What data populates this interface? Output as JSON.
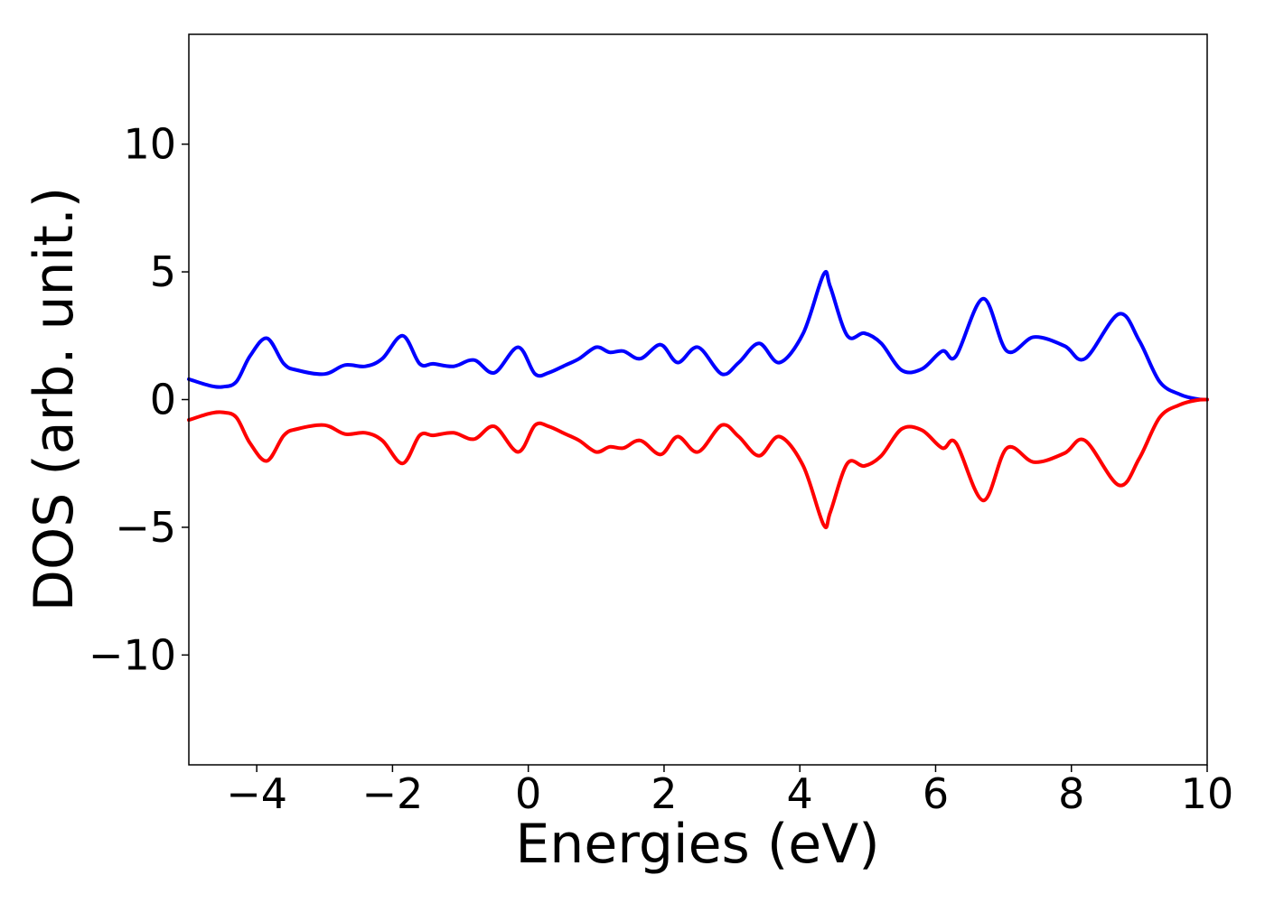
{
  "chart_data": {
    "type": "line",
    "title": "",
    "xlabel": "Energies (eV)",
    "ylabel": "DOS (arb. unit.)",
    "xlim": [
      -5,
      10
    ],
    "ylim": [
      -14.3,
      14.3
    ],
    "grid": false,
    "legend": "none",
    "x_ticks": [
      -4,
      -2,
      0,
      2,
      4,
      6,
      8,
      10
    ],
    "y_ticks": [
      -10,
      -5,
      0,
      5,
      10
    ],
    "series": [
      {
        "color": "#0000ff",
        "x": [
          -5.0,
          -4.7,
          -4.5,
          -4.3,
          -4.1,
          -3.85,
          -3.6,
          -3.4,
          -3.0,
          -2.7,
          -2.4,
          -2.15,
          -1.85,
          -1.6,
          -1.4,
          -1.1,
          -0.8,
          -0.5,
          -0.15,
          0.1,
          0.3,
          0.55,
          0.75,
          1.0,
          1.2,
          1.4,
          1.65,
          1.95,
          2.2,
          2.5,
          2.85,
          3.1,
          3.4,
          3.7,
          4.05,
          4.35,
          4.45,
          4.7,
          4.95,
          5.2,
          5.5,
          5.8,
          6.1,
          6.3,
          6.7,
          7.05,
          7.45,
          7.9,
          8.2,
          8.7,
          9.0,
          9.3,
          9.6,
          9.85,
          10.0
        ],
        "y": [
          0.8,
          0.55,
          0.5,
          0.7,
          1.7,
          2.4,
          1.4,
          1.15,
          1.0,
          1.35,
          1.3,
          1.6,
          2.5,
          1.4,
          1.4,
          1.3,
          1.55,
          1.05,
          2.05,
          1.0,
          1.05,
          1.35,
          1.6,
          2.05,
          1.85,
          1.9,
          1.6,
          2.15,
          1.45,
          2.05,
          1.0,
          1.45,
          2.2,
          1.45,
          2.6,
          4.9,
          4.4,
          2.5,
          2.6,
          2.2,
          1.15,
          1.2,
          1.9,
          1.7,
          3.95,
          1.9,
          2.45,
          2.1,
          1.6,
          3.35,
          2.3,
          0.7,
          0.2,
          0.02,
          0.0
        ]
      },
      {
        "color": "#ff0000",
        "x": [
          -5.0,
          -4.7,
          -4.5,
          -4.3,
          -4.1,
          -3.85,
          -3.6,
          -3.4,
          -3.0,
          -2.7,
          -2.4,
          -2.15,
          -1.85,
          -1.6,
          -1.4,
          -1.1,
          -0.8,
          -0.5,
          -0.15,
          0.1,
          0.3,
          0.55,
          0.75,
          1.0,
          1.2,
          1.4,
          1.65,
          1.95,
          2.2,
          2.5,
          2.85,
          3.1,
          3.4,
          3.7,
          4.05,
          4.35,
          4.45,
          4.7,
          4.95,
          5.2,
          5.5,
          5.8,
          6.1,
          6.3,
          6.7,
          7.05,
          7.45,
          7.9,
          8.2,
          8.7,
          9.0,
          9.3,
          9.6,
          9.85,
          10.0
        ],
        "y": [
          -0.8,
          -0.55,
          -0.5,
          -0.7,
          -1.7,
          -2.4,
          -1.4,
          -1.15,
          -1.0,
          -1.35,
          -1.3,
          -1.6,
          -2.5,
          -1.4,
          -1.4,
          -1.3,
          -1.55,
          -1.05,
          -2.05,
          -1.0,
          -1.05,
          -1.35,
          -1.6,
          -2.05,
          -1.85,
          -1.9,
          -1.6,
          -2.15,
          -1.45,
          -2.05,
          -1.0,
          -1.45,
          -2.2,
          -1.45,
          -2.6,
          -4.9,
          -4.4,
          -2.5,
          -2.6,
          -2.2,
          -1.15,
          -1.2,
          -1.9,
          -1.7,
          -3.95,
          -1.9,
          -2.45,
          -2.1,
          -1.6,
          -3.35,
          -2.3,
          -0.7,
          -0.2,
          -0.02,
          0.0
        ]
      }
    ]
  }
}
